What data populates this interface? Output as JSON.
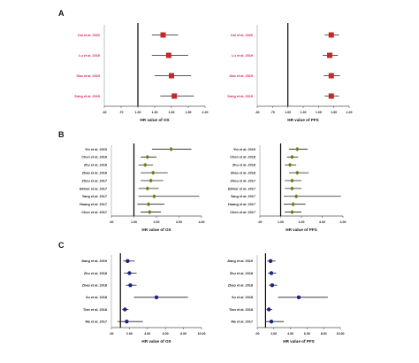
{
  "figure": {
    "panels": [
      "A",
      "B",
      "C"
    ]
  },
  "chart_data": [
    {
      "id": "A-OS",
      "panel": "A",
      "type": "forest",
      "xlabel": "HR value of  OS",
      "xlim": [
        0.4,
        2.2
      ],
      "tick_values": [
        0.4,
        0.7,
        1.0,
        1.3,
        1.6,
        1.9,
        2.2
      ],
      "tick_labels": [
        ".40",
        ".70",
        "1.00",
        "1.30",
        "1.60",
        "1.90",
        "2.20"
      ],
      "ref_line": 1.0,
      "label_color": "#d81b60",
      "marker_color": "#c62828",
      "marker_shape": "square",
      "studies": [
        {
          "label": "Cai et al. 2020",
          "hr": 1.45,
          "lo": 1.25,
          "hi": 1.72
        },
        {
          "label": "Lu et al. 2019",
          "hr": 1.55,
          "lo": 1.25,
          "hi": 1.9
        },
        {
          "label": "Gao et al. 2019",
          "hr": 1.6,
          "lo": 1.3,
          "hi": 1.95
        },
        {
          "label": "Song et al. 2019",
          "hr": 1.65,
          "lo": 1.4,
          "hi": 2.0
        }
      ]
    },
    {
      "id": "A-PFS",
      "panel": "A",
      "type": "forest",
      "xlabel": "HR value of PFS",
      "xlim": [
        0.4,
        2.2
      ],
      "tick_values": [
        0.4,
        0.7,
        1.0,
        1.3,
        1.6,
        1.9,
        2.2
      ],
      "tick_labels": [
        ".40",
        ".70",
        "1.00",
        "1.30",
        "1.60",
        "1.90",
        "2.20"
      ],
      "ref_line": 1.0,
      "label_color": "#d81b60",
      "marker_color": "#c62828",
      "marker_shape": "square",
      "studies": [
        {
          "label": "Cai et al. 2020",
          "hr": 1.85,
          "lo": 1.72,
          "hi": 2.0
        },
        {
          "label": "Lu et al. 2019",
          "hr": 1.82,
          "lo": 1.68,
          "hi": 1.98
        },
        {
          "label": "Gao et al. 2019",
          "hr": 1.85,
          "lo": 1.7,
          "hi": 2.02
        },
        {
          "label": "Song et al. 2019",
          "hr": 1.85,
          "lo": 1.72,
          "hi": 2.0
        }
      ]
    },
    {
      "id": "B-OS",
      "panel": "B",
      "type": "forest",
      "xlabel": "HR value of OS",
      "xlim": [
        0.0,
        4.0
      ],
      "tick_values": [
        0.0,
        1.0,
        2.0,
        3.0,
        4.0
      ],
      "tick_labels": [
        ".00",
        "1.00",
        "2.00",
        "3.00",
        "4.00"
      ],
      "ref_line": 1.0,
      "label_color": "#222222",
      "marker_color": "#6b7a1a",
      "marker_shape": "diamond",
      "studies": [
        {
          "label": "Yin et al. 2019",
          "hr": 2.65,
          "lo": 1.8,
          "hi": 3.55
        },
        {
          "label": "Chen et al. 2018",
          "hr": 1.6,
          "lo": 1.3,
          "hi": 2.0
        },
        {
          "label": "Zhu et al. 2018",
          "hr": 1.5,
          "lo": 1.2,
          "hi": 1.85
        },
        {
          "label": "Zhao et al. 2018",
          "hr": 1.85,
          "lo": 1.3,
          "hi": 2.5
        },
        {
          "label": "Zhou et al. 2017",
          "hr": 1.75,
          "lo": 1.3,
          "hi": 2.3
        },
        {
          "label": "Ellinor et al. 2017",
          "hr": 1.6,
          "lo": 1.2,
          "hi": 2.1
        },
        {
          "label": "Yang et al. 2017",
          "hr": 1.9,
          "lo": 1.2,
          "hi": 3.9
        },
        {
          "label": "Huang et al. 2017",
          "hr": 1.65,
          "lo": 1.15,
          "hi": 2.35
        },
        {
          "label": "Chen et al. 2017",
          "hr": 1.7,
          "lo": 1.3,
          "hi": 2.2
        }
      ]
    },
    {
      "id": "B-PFS",
      "panel": "B",
      "type": "forest",
      "xlabel": "HR value of PFS",
      "xlim": [
        0.0,
        4.0
      ],
      "tick_values": [
        0.0,
        1.0,
        2.0,
        3.0,
        4.0
      ],
      "tick_labels": [
        ".00",
        "1.00",
        "2.00",
        "3.00",
        "4.00"
      ],
      "ref_line": 1.0,
      "label_color": "#222222",
      "marker_color": "#6b7a1a",
      "marker_shape": "diamond",
      "studies": [
        {
          "label": "Yin et al. 2019",
          "hr": 1.8,
          "lo": 1.4,
          "hi": 2.3
        },
        {
          "label": "Chen et al. 2018",
          "hr": 1.55,
          "lo": 1.3,
          "hi": 1.85
        },
        {
          "label": "Zhu et al. 2018",
          "hr": 1.45,
          "lo": 1.2,
          "hi": 1.75
        },
        {
          "label": "Zhao et al. 2018",
          "hr": 1.8,
          "lo": 1.4,
          "hi": 2.35
        },
        {
          "label": "Zhou et al. 2017",
          "hr": 1.55,
          "lo": 1.2,
          "hi": 2.0
        },
        {
          "label": "Ellinor et al. 2017",
          "hr": 1.55,
          "lo": 1.2,
          "hi": 2.0
        },
        {
          "label": "Yang et al. 2017",
          "hr": 1.75,
          "lo": 1.15,
          "hi": 3.9
        },
        {
          "label": "Huang et al. 2017",
          "hr": 1.6,
          "lo": 1.15,
          "hi": 2.2
        },
        {
          "label": "Chen et al. 2017",
          "hr": 1.55,
          "lo": 1.2,
          "hi": 2.0
        }
      ]
    },
    {
      "id": "C-OS",
      "panel": "C",
      "type": "forest",
      "xlabel": "HR value of OS",
      "xlim": [
        0.0,
        10.0
      ],
      "tick_values": [
        0.0,
        2.0,
        4.0,
        6.0,
        8.0,
        10.0
      ],
      "tick_labels": [
        ".00",
        "2.00",
        "4.00",
        "6.00",
        "8.00",
        "10.00"
      ],
      "ref_line": 1.0,
      "label_color": "#222222",
      "marker_color": "#1a237e",
      "marker_shape": "circle",
      "studies": [
        {
          "label": "Jiang et al. 2019",
          "hr": 1.8,
          "lo": 1.3,
          "hi": 2.6
        },
        {
          "label": "Zhu et al. 2018",
          "hr": 2.0,
          "lo": 1.4,
          "hi": 2.8
        },
        {
          "label": "Zhao et al. 2018",
          "hr": 2.1,
          "lo": 1.6,
          "hi": 2.8
        },
        {
          "label": "Xu et al. 2018",
          "hr": 5.0,
          "lo": 2.5,
          "hi": 8.5
        },
        {
          "label": "Tian et al. 2018",
          "hr": 1.5,
          "lo": 1.2,
          "hi": 1.9
        },
        {
          "label": "Ma et al. 2017",
          "hr": 1.7,
          "lo": 0.7,
          "hi": 3.5
        }
      ]
    },
    {
      "id": "C-PFS",
      "panel": "C",
      "type": "forest",
      "xlabel": "HR value of PFS",
      "xlim": [
        0.0,
        10.0
      ],
      "tick_values": [
        0.0,
        2.0,
        4.0,
        6.0,
        8.0,
        10.0
      ],
      "tick_labels": [
        ".00",
        "2.00",
        "4.00",
        "6.00",
        "8.00",
        "10.00"
      ],
      "ref_line": 1.0,
      "label_color": "#222222",
      "marker_color": "#1a237e",
      "marker_shape": "circle",
      "studies": [
        {
          "label": "Jiang et al. 2019",
          "hr": 1.6,
          "lo": 1.2,
          "hi": 2.2
        },
        {
          "label": "Zhu et al. 2018",
          "hr": 1.7,
          "lo": 1.3,
          "hi": 2.3
        },
        {
          "label": "Zhao et al. 2018",
          "hr": 1.8,
          "lo": 1.4,
          "hi": 2.4
        },
        {
          "label": "Xu et al. 2018",
          "hr": 5.0,
          "lo": 2.5,
          "hi": 8.5
        },
        {
          "label": "Tian et al. 2018",
          "hr": 1.4,
          "lo": 1.1,
          "hi": 1.8
        },
        {
          "label": "Ma et al. 2017",
          "hr": 1.7,
          "lo": 1.0,
          "hi": 3.2
        }
      ]
    }
  ]
}
